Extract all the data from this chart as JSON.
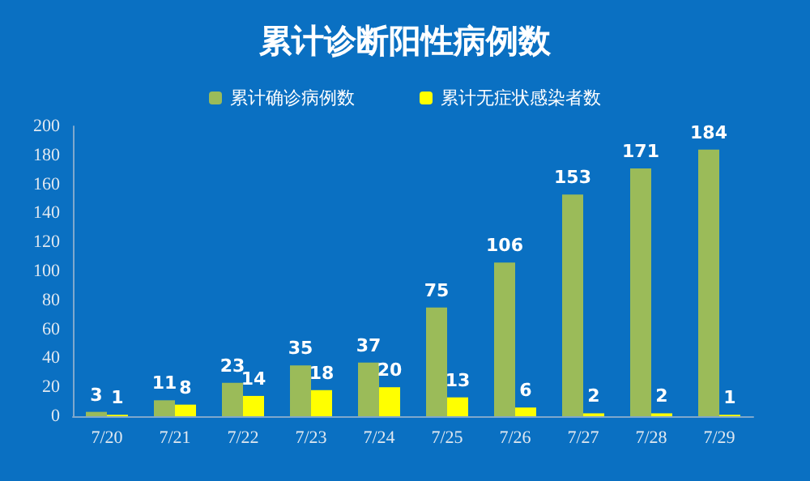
{
  "chart_data": {
    "type": "bar",
    "title": "累计诊断阳性病例数",
    "categories": [
      "7/20",
      "7/21",
      "7/22",
      "7/23",
      "7/24",
      "7/25",
      "7/26",
      "7/27",
      "7/28",
      "7/29"
    ],
    "series": [
      {
        "name": "累计确诊病例数",
        "color": "#9bbb59",
        "values": [
          3,
          11,
          23,
          35,
          37,
          75,
          106,
          153,
          171,
          184
        ]
      },
      {
        "name": "累计无症状感染者数",
        "color": "#ffff00",
        "values": [
          1,
          8,
          14,
          18,
          20,
          13,
          6,
          2,
          2,
          1
        ]
      }
    ],
    "ylim": [
      0,
      200
    ],
    "yticks": [
      0,
      20,
      40,
      60,
      80,
      100,
      120,
      140,
      160,
      180,
      200
    ],
    "grid": false,
    "legend": "top",
    "data_labels": true
  }
}
